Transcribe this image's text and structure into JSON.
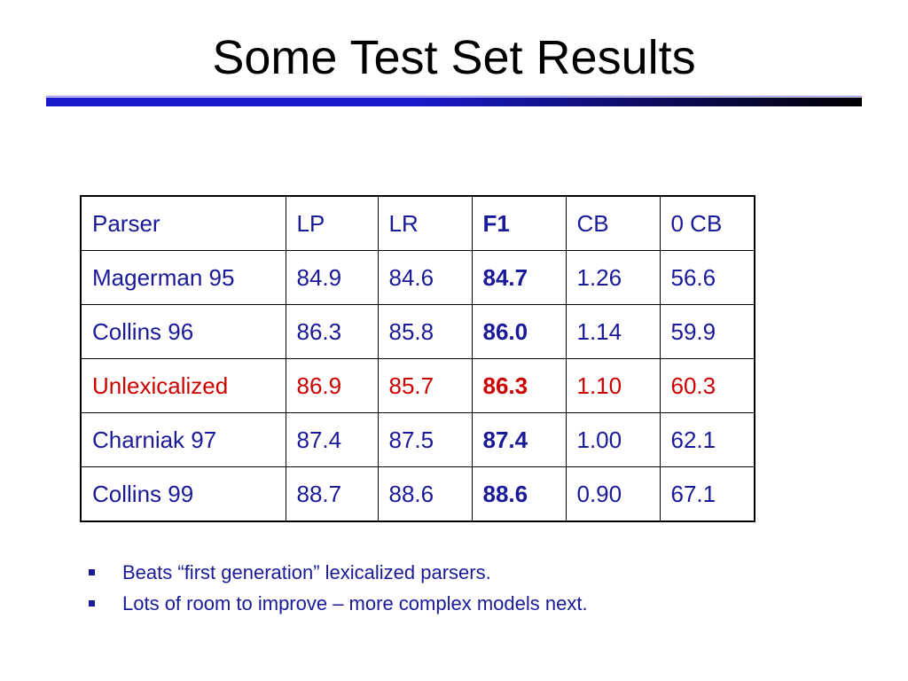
{
  "header": {
    "title": "Some Test Set Results"
  },
  "table": {
    "columns": [
      "Parser",
      "LP",
      "LR",
      "F1",
      "CB",
      "0 CB"
    ],
    "rows": [
      {
        "cells": [
          "Magerman 95",
          "84.9",
          "84.6",
          "84.7",
          "1.26",
          "56.6"
        ]
      },
      {
        "cells": [
          "Collins 96",
          "86.3",
          "85.8",
          "86.0",
          "1.14",
          "59.9"
        ]
      },
      {
        "cells": [
          "Unlexicalized",
          "86.9",
          "85.7",
          "86.3",
          "1.10",
          "60.3"
        ],
        "color": "#cc0000"
      },
      {
        "cells": [
          "Charniak 97",
          "87.4",
          "87.5",
          "87.4",
          "1.00",
          "62.1"
        ]
      },
      {
        "cells": [
          "Collins 99",
          "88.7",
          "88.6",
          "88.6",
          "0.90",
          "67.1"
        ]
      }
    ]
  },
  "bullets": [
    "Beats “first generation” lexicalized parsers.",
    "Lots of room to improve – more complex models next."
  ]
}
